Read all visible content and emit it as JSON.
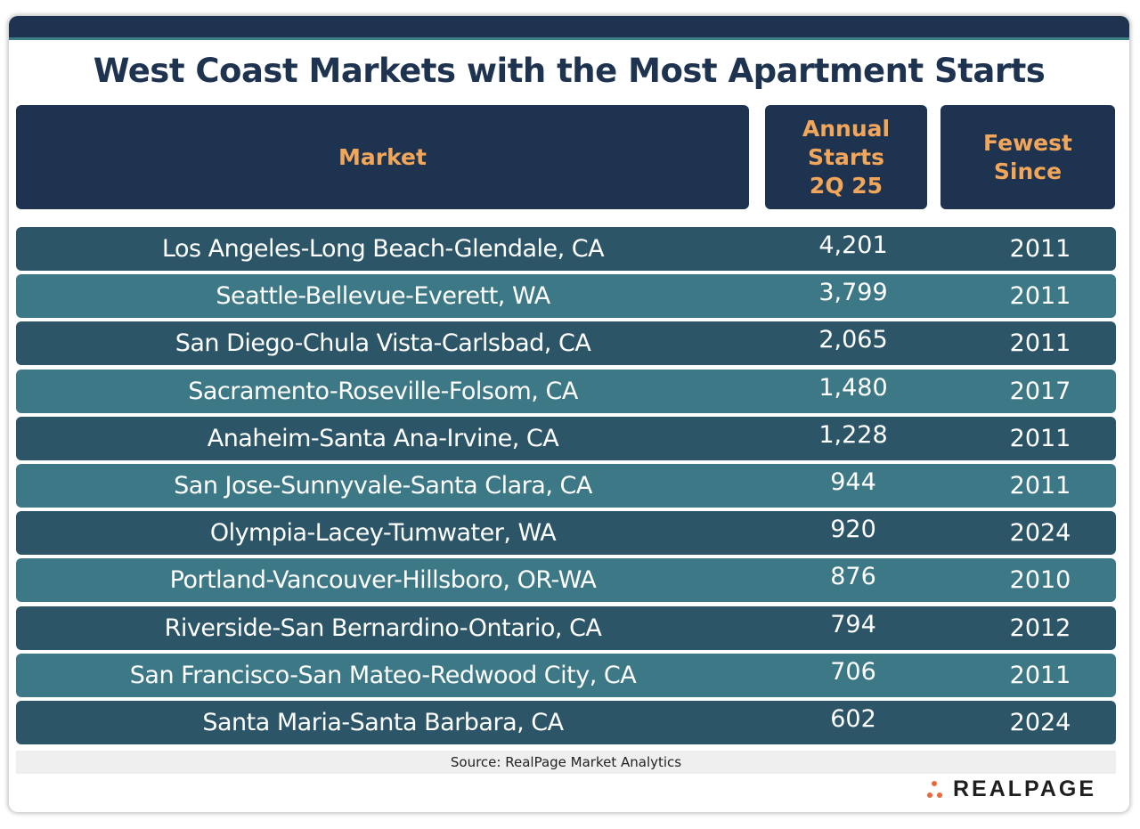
{
  "title": "West Coast Markets with the Most Apartment Starts",
  "headers": {
    "market": "Market",
    "starts": "Annual\nStarts\n2Q 25",
    "since": "Fewest\nSince"
  },
  "source": "Source: RealPage Market Analytics",
  "logo_text": "REALPAGE",
  "colors": {
    "navy": "#1e3350",
    "header_text": "#f2a65a",
    "row_dark": "#2c5567",
    "row_light": "#3d7886",
    "logo_dot": "#e8693a"
  },
  "chart_data": {
    "type": "table",
    "columns": [
      "Market",
      "Annual Starts 2Q 25",
      "Fewest Since"
    ],
    "rows": [
      {
        "market": "Los Angeles-Long Beach-Glendale, CA",
        "starts": "4,201",
        "since": "2011"
      },
      {
        "market": "Seattle-Bellevue-Everett, WA",
        "starts": "3,799",
        "since": "2011"
      },
      {
        "market": "San Diego-Chula Vista-Carlsbad, CA",
        "starts": "2,065",
        "since": "2011"
      },
      {
        "market": "Sacramento-Roseville-Folsom, CA",
        "starts": "1,480",
        "since": "2017"
      },
      {
        "market": "Anaheim-Santa Ana-Irvine, CA",
        "starts": "1,228",
        "since": "2011"
      },
      {
        "market": "San Jose-Sunnyvale-Santa Clara, CA",
        "starts": "944",
        "since": "2011"
      },
      {
        "market": "Olympia-Lacey-Tumwater, WA",
        "starts": "920",
        "since": "2024"
      },
      {
        "market": "Portland-Vancouver-Hillsboro, OR-WA",
        "starts": "876",
        "since": "2010"
      },
      {
        "market": "Riverside-San Bernardino-Ontario, CA",
        "starts": "794",
        "since": "2012"
      },
      {
        "market": "San Francisco-San Mateo-Redwood City, CA",
        "starts": "706",
        "since": "2011"
      },
      {
        "market": "Santa Maria-Santa Barbara, CA",
        "starts": "602",
        "since": "2024"
      }
    ]
  }
}
